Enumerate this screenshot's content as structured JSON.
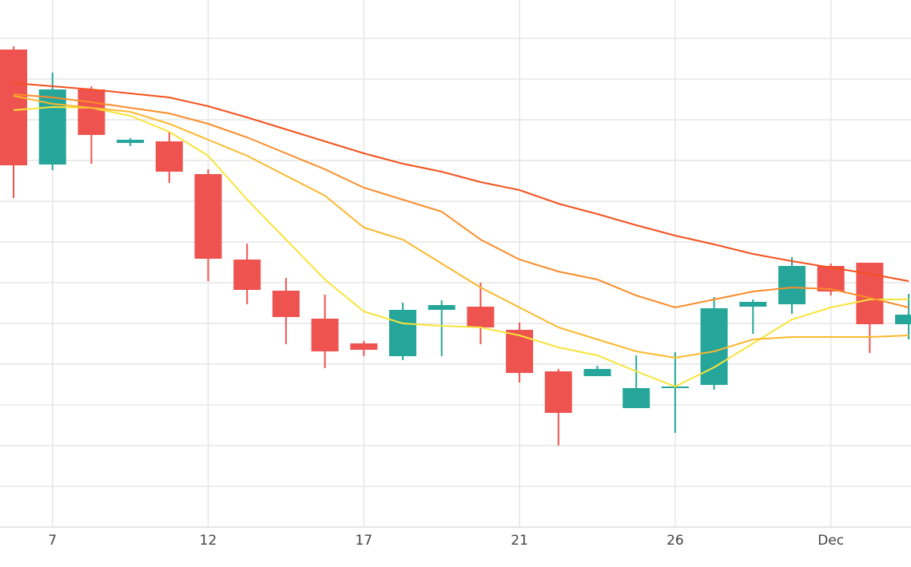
{
  "chart_data": {
    "type": "candlestick",
    "categories": [
      null,
      "7",
      null,
      null,
      null,
      "12",
      null,
      null,
      null,
      "17",
      null,
      null,
      null,
      "21",
      null,
      null,
      null,
      "26",
      null,
      null,
      null,
      "Dec",
      null,
      null
    ],
    "open": [
      598,
      454,
      548,
      481,
      483,
      442,
      335,
      296,
      261,
      230,
      214,
      272,
      276,
      247,
      195,
      189,
      149,
      174,
      178,
      276,
      279,
      327,
      331,
      254
    ],
    "high": [
      602,
      569,
      552,
      487,
      495,
      448,
      355,
      312,
      291,
      233,
      281,
      284,
      306,
      256,
      198,
      202,
      215,
      219,
      288,
      285,
      338,
      330,
      331,
      292
    ],
    "low": [
      412,
      447,
      455,
      477,
      431,
      308,
      279,
      229,
      199,
      214,
      209,
      214,
      229,
      181,
      102,
      189,
      149,
      118,
      172,
      242,
      267,
      290,
      218,
      235
    ],
    "close": [
      453,
      548,
      491,
      485,
      445,
      336,
      297,
      263,
      220,
      222,
      272,
      278,
      250,
      193,
      143,
      198,
      174,
      176,
      274,
      282,
      327,
      295,
      254,
      266
    ],
    "up_color": "#26a69a",
    "down_color": "#ef5350",
    "series": [
      {
        "color": "#f7e43b",
        "values": [
          522,
          526,
          525,
          515,
          495,
          465,
          410,
          360,
          310,
          270,
          255,
          252,
          250,
          240,
          225,
          215,
          195,
          176,
          200,
          230,
          260,
          275,
          285,
          285
        ]
      },
      {
        "color": "#fbb82e",
        "values": [
          540,
          530,
          525,
          520,
          505,
          485,
          465,
          440,
          415,
          375,
          360,
          330,
          300,
          275,
          250,
          235,
          220,
          212,
          220,
          235,
          238,
          238,
          238,
          240
        ]
      },
      {
        "color": "#fb8c2a",
        "values": [
          542,
          538,
          532,
          525,
          518,
          505,
          488,
          468,
          448,
          425,
          410,
          395,
          360,
          335,
          320,
          310,
          290,
          275,
          285,
          295,
          300,
          298,
          287,
          275
        ]
      },
      {
        "color": "#f4511e",
        "values": [
          556,
          552,
          548,
          543,
          538,
          527,
          513,
          498,
          483,
          468,
          455,
          445,
          432,
          422,
          405,
          392,
          378,
          365,
          354,
          342,
          333,
          325,
          317,
          308
        ]
      }
    ],
    "ylim": [
      0,
      660
    ],
    "ygrid": [
      51,
      102,
      153,
      204,
      255,
      306,
      357,
      408,
      459,
      510,
      561,
      612
    ],
    "grid": true
  }
}
